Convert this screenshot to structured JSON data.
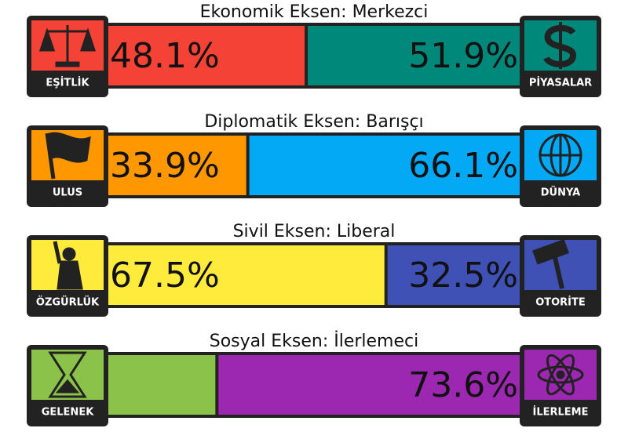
{
  "axes": [
    {
      "title": "Ekonomik Eksen: Merkezci",
      "left": {
        "label": "EŞİTLİK",
        "color": "#f44336",
        "value": 48.1,
        "value_label": "48.1%"
      },
      "right": {
        "label": "PİYASALAR",
        "color": "#00897b",
        "value": 51.9,
        "value_label": "51.9%"
      }
    },
    {
      "title": "Diplomatik Eksen: Barışçı",
      "left": {
        "label": "ULUS",
        "color": "#ff9800",
        "value": 33.9,
        "value_label": "33.9%"
      },
      "right": {
        "label": "DÜNYA",
        "color": "#03a9f4",
        "value": 66.1,
        "value_label": "66.1%"
      }
    },
    {
      "title": "Sivil Eksen: Liberal",
      "left": {
        "label": "ÖZGÜRLÜK",
        "color": "#ffeb3b",
        "value": 67.5,
        "value_label": "67.5%"
      },
      "right": {
        "label": "OTORİTE",
        "color": "#3f51b5",
        "value": 32.5,
        "value_label": "32.5%"
      }
    },
    {
      "title": "Sosyal Eksen: İlerlemeci",
      "left": {
        "label": "GELENEK",
        "color": "#8bc34a",
        "value": 26.4
      },
      "right": {
        "label": "İLERLEME",
        "color": "#9c27b0",
        "value": 73.6,
        "value_label": "73.6%"
      }
    }
  ]
}
